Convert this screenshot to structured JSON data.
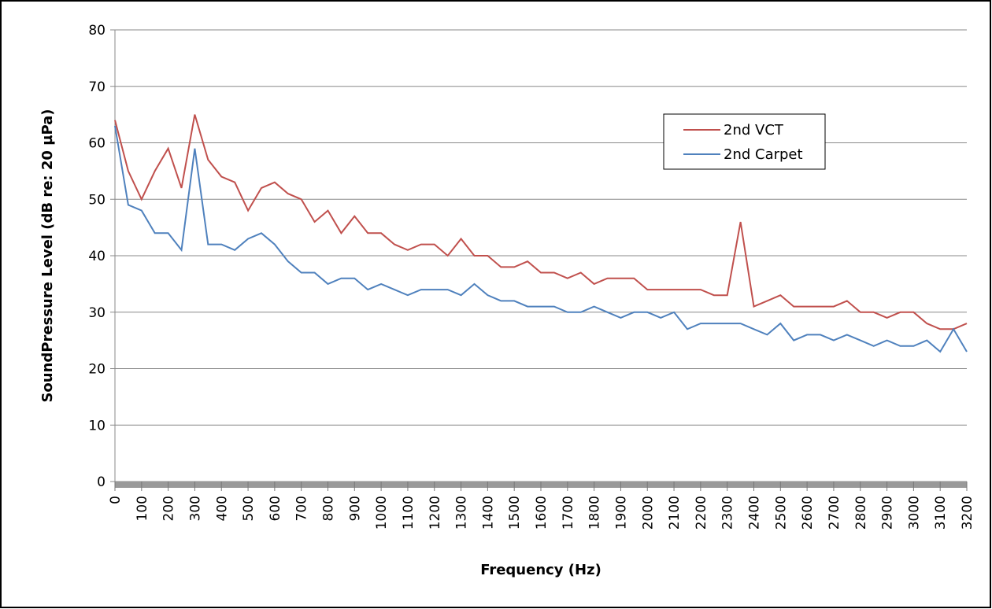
{
  "chart_data": {
    "type": "line",
    "xlabel": "Frequency (Hz)",
    "ylabel": "SoundPressure Level (dB re: 20 µPa)",
    "x": [
      0,
      50,
      100,
      150,
      200,
      250,
      300,
      350,
      400,
      450,
      500,
      550,
      600,
      650,
      700,
      750,
      800,
      850,
      900,
      950,
      1000,
      1050,
      1100,
      1150,
      1200,
      1250,
      1300,
      1350,
      1400,
      1450,
      1500,
      1550,
      1600,
      1650,
      1700,
      1750,
      1800,
      1850,
      1900,
      1950,
      2000,
      2050,
      2100,
      2150,
      2200,
      2250,
      2300,
      2350,
      2400,
      2450,
      2500,
      2550,
      2600,
      2650,
      2700,
      2750,
      2800,
      2850,
      2900,
      2950,
      3000,
      3050,
      3100,
      3150,
      3200
    ],
    "series": [
      {
        "name": "2nd VCT",
        "color": "#c0504d",
        "values": [
          64,
          55,
          50,
          55,
          59,
          52,
          65,
          57,
          54,
          53,
          48,
          52,
          53,
          51,
          50,
          46,
          48,
          44,
          47,
          44,
          44,
          42,
          41,
          42,
          42,
          40,
          43,
          40,
          40,
          38,
          38,
          39,
          37,
          37,
          36,
          37,
          35,
          36,
          36,
          36,
          34,
          34,
          34,
          34,
          34,
          33,
          33,
          46,
          31,
          32,
          33,
          31,
          31,
          31,
          31,
          32,
          30,
          30,
          29,
          30,
          30,
          28,
          27,
          27,
          28
        ]
      },
      {
        "name": "2nd Carpet",
        "color": "#4f81bd",
        "values": [
          63,
          49,
          48,
          44,
          44,
          41,
          59,
          42,
          42,
          41,
          43,
          44,
          42,
          39,
          37,
          37,
          35,
          36,
          36,
          34,
          35,
          34,
          33,
          34,
          34,
          34,
          33,
          35,
          33,
          32,
          32,
          31,
          31,
          31,
          30,
          30,
          31,
          30,
          29,
          30,
          30,
          29,
          30,
          27,
          28,
          28,
          28,
          28,
          27,
          26,
          28,
          25,
          26,
          26,
          25,
          26,
          25,
          24,
          25,
          24,
          24,
          25,
          23,
          27,
          23
        ]
      }
    ],
    "xlim": [
      0,
      3200
    ],
    "xticks": [
      0,
      100,
      200,
      300,
      400,
      500,
      600,
      700,
      800,
      900,
      1000,
      1100,
      1200,
      1300,
      1400,
      1500,
      1600,
      1700,
      1800,
      1900,
      2000,
      2100,
      2200,
      2300,
      2400,
      2500,
      2600,
      2700,
      2800,
      2900,
      3000,
      3100,
      3200
    ],
    "ylim": [
      0,
      80
    ],
    "yticks": [
      0,
      10,
      20,
      30,
      40,
      50,
      60,
      70,
      80
    ],
    "grid": true,
    "legend": "upper right"
  }
}
